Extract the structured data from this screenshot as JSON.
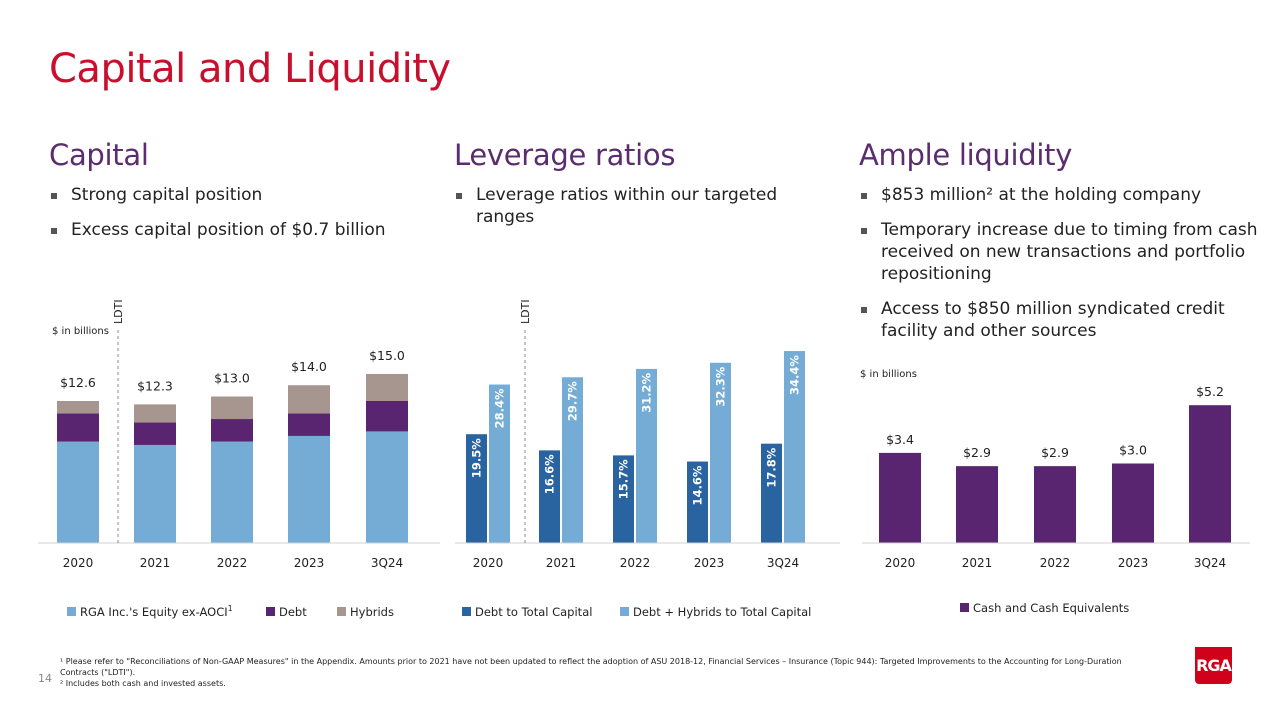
{
  "title": "Capital and Liquidity",
  "columns": [
    {
      "heading": "Capital",
      "bullets": [
        "Strong capital position",
        "Excess capital position of $0.7 billion"
      ]
    },
    {
      "heading": "Leverage ratios",
      "bullets": [
        "Leverage ratios within our targeted ranges"
      ]
    },
    {
      "heading": "Ample liquidity",
      "bullets": [
        "$853 million² at the holding company",
        "Temporary increase due to timing from cash received on new transactions and portfolio repositioning",
        "Access to $850 million syndicated credit facility and other sources"
      ]
    }
  ],
  "chart_data": [
    {
      "type": "bar",
      "stacked": true,
      "unit_label": "$ in billions",
      "marker": "LDTI",
      "categories": [
        "2020",
        "2021",
        "2022",
        "2023",
        "3Q24"
      ],
      "totals": [
        "$12.6",
        "$12.3",
        "$13.0",
        "$14.0",
        "$15.0"
      ],
      "series": [
        {
          "name": "RGA Inc.'s Equity ex-AOCI",
          "sup": "1",
          "color": "#74acd5",
          "values": [
            9.0,
            8.7,
            9.0,
            9.5,
            9.9
          ]
        },
        {
          "name": "Debt",
          "color": "#5a2570",
          "values": [
            2.5,
            2.0,
            2.0,
            2.0,
            2.7
          ]
        },
        {
          "name": "Hybrids",
          "color": "#a6968f",
          "values": [
            1.1,
            1.6,
            2.0,
            2.5,
            2.4
          ]
        }
      ],
      "ylim": [
        0,
        15.8
      ]
    },
    {
      "type": "bar",
      "grouped": true,
      "marker": "LDTI",
      "categories": [
        "2020",
        "2021",
        "2022",
        "2023",
        "3Q24"
      ],
      "series": [
        {
          "name": "Debt to Total Capital",
          "color": "#2a64a0",
          "values": [
            19.5,
            16.6,
            15.7,
            14.6,
            17.8
          ],
          "labels": [
            "19.5%",
            "16.6%",
            "15.7%",
            "14.6%",
            "17.8%"
          ]
        },
        {
          "name": "Debt + Hybrids to Total Capital",
          "color": "#74acd5",
          "values": [
            28.4,
            29.7,
            31.2,
            32.3,
            34.4
          ],
          "labels": [
            "28.4%",
            "29.7%",
            "31.2%",
            "32.3%",
            "34.4%"
          ]
        }
      ],
      "ylim": [
        0,
        34.4
      ]
    },
    {
      "type": "bar",
      "unit_label": "$ in billions",
      "categories": [
        "2020",
        "2021",
        "2022",
        "2023",
        "3Q24"
      ],
      "series": [
        {
          "name": "Cash and Cash Equivalents",
          "color": "#5a2570",
          "values": [
            3.4,
            2.9,
            2.9,
            3.0,
            5.2
          ],
          "labels": [
            "$3.4",
            "$2.9",
            "$2.9",
            "$3.0",
            "$5.2"
          ]
        }
      ],
      "ylim": [
        0,
        5.2
      ]
    }
  ],
  "footnotes": {
    "f1": "¹ Please refer to \"Reconciliations of Non-GAAP Measures\" in the Appendix. Amounts prior to 2021 have not been updated to reflect the adoption of ASU 2018-12, Financial Services – Insurance (Topic 944): Targeted Improvements to the Accounting for Long-Duration Contracts (\"LDTI\").",
    "f2": "² Includes both cash and invested assets."
  },
  "page_number": "14",
  "logo": "RGA"
}
